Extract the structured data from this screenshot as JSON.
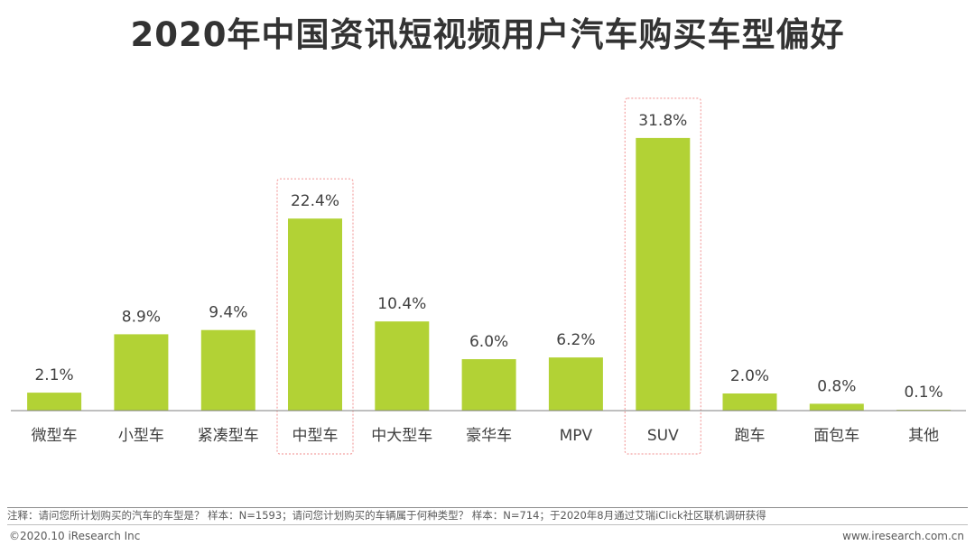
{
  "title": "2020年中国资讯短视频用户汽车购买车型偏好",
  "chart_data": {
    "type": "bar",
    "title": "2020年中国资讯短视频用户汽车购买车型偏好",
    "categories": [
      "微型车",
      "小型车",
      "紧凑型车",
      "中型车",
      "中大型车",
      "豪华车",
      "MPV",
      "SUV",
      "跑车",
      "面包车",
      "其他"
    ],
    "values": [
      2.1,
      8.9,
      9.4,
      22.4,
      10.4,
      6.0,
      6.2,
      31.8,
      2.0,
      0.8,
      0.1
    ],
    "value_labels": [
      "2.1%",
      "8.9%",
      "9.4%",
      "22.4%",
      "10.4%",
      "6.0%",
      "6.2%",
      "31.8%",
      "2.0%",
      "0.8%",
      "0.1%"
    ],
    "unit": "%",
    "highlighted": [
      "中型车",
      "SUV"
    ],
    "bar_color": "#b2d235",
    "highlight_color": "#f4a3a3",
    "ylim": [
      0,
      35
    ],
    "grid": false,
    "legend": "none"
  },
  "footer": {
    "note": "注释：请问您所计划购买的汽车的车型是？ 样本：N=1593；请问您计划购买的车辆属于何种类型？ 样本：N=714；于2020年8月通过艾瑞iClick社区联机调研获得",
    "copyright": "©2020.10 iResearch Inc",
    "website": "www.iresearch.com.cn"
  }
}
